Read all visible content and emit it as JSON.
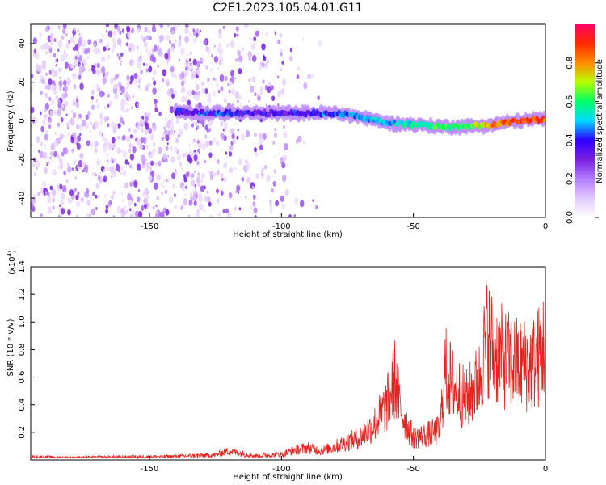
{
  "title": "C2E1.2023.105.04.01.G11",
  "chart_data": [
    {
      "type": "heatmap",
      "xlabel": "Height of straight line (km)",
      "ylabel": "Frequency (Hz)",
      "xlim": [
        -195,
        0
      ],
      "ylim": [
        -50,
        50
      ],
      "x_ticks": [
        -150,
        -100,
        -50,
        0
      ],
      "y_ticks": [
        -40,
        -20,
        0,
        20,
        40
      ],
      "colorbar": {
        "label": "Normalized spectral amplitude",
        "range": [
          0.0,
          1.0
        ],
        "ticks": [
          "0.0",
          "0.2",
          "0.4",
          "0.6",
          "0.8"
        ],
        "colormap": [
          "#ffffff",
          "#e2c8ff",
          "#b47cff",
          "#7a1fe0",
          "#2d00ff",
          "#00d9ff",
          "#00ff66",
          "#b4ff00",
          "#ff8c00",
          "#ff2a00",
          "#ff0066"
        ]
      },
      "ridge": [
        {
          "x": -140,
          "y": 5,
          "a": 0.35
        },
        {
          "x": -130,
          "y": 4,
          "a": 0.4
        },
        {
          "x": -120,
          "y": 4,
          "a": 0.4
        },
        {
          "x": -110,
          "y": 4,
          "a": 0.35
        },
        {
          "x": -100,
          "y": 4,
          "a": 0.35
        },
        {
          "x": -90,
          "y": 4,
          "a": 0.4
        },
        {
          "x": -80,
          "y": 4,
          "a": 0.45
        },
        {
          "x": -70,
          "y": 2,
          "a": 0.45
        },
        {
          "x": -60,
          "y": -1,
          "a": 0.5
        },
        {
          "x": -50,
          "y": -2,
          "a": 0.55
        },
        {
          "x": -40,
          "y": -3,
          "a": 0.6
        },
        {
          "x": -30,
          "y": -3,
          "a": 0.6
        },
        {
          "x": -20,
          "y": -2,
          "a": 0.8
        },
        {
          "x": -10,
          "y": 0,
          "a": 0.9
        },
        {
          "x": 0,
          "y": 1,
          "a": 0.85
        }
      ],
      "noise_regions": [
        {
          "x0": -195,
          "x1": -130,
          "density": 1.0
        },
        {
          "x0": -130,
          "x1": -97,
          "density": 0.55
        },
        {
          "x0": -97,
          "x1": -85,
          "density": 0.12
        }
      ]
    },
    {
      "type": "line",
      "xlabel": "Height of straight line (km)",
      "ylabel": "SNR (10 * v/v)",
      "y_multiplier": "(x10",
      "y_multiplier_exp": "4",
      "y_multiplier_close": ")",
      "xlim": [
        -195,
        0
      ],
      "ylim": [
        0,
        14000
      ],
      "x_ticks": [
        -150,
        -100,
        -50,
        0
      ],
      "y_ticks": [
        "0.2",
        "0.4",
        "0.6",
        "0.8",
        "1.0",
        "1.2",
        "1.4"
      ],
      "color": "#e8231f",
      "series": [
        {
          "x": [
            -195,
            -180,
            -160,
            -140,
            -125,
            -120,
            -110,
            -100,
            -95,
            -90,
            -85,
            -80,
            -75,
            -70,
            -65,
            -60,
            -57,
            -55,
            -50,
            -45,
            -40,
            -38,
            -35,
            -30,
            -25,
            -22,
            -20,
            -15,
            -10,
            -5,
            -2,
            0
          ],
          "y": [
            300,
            250,
            300,
            350,
            500,
            900,
            400,
            550,
            1000,
            1200,
            900,
            1300,
            1800,
            2300,
            3500,
            5500,
            8200,
            5000,
            2200,
            2500,
            3000,
            9000,
            7500,
            6000,
            8000,
            13000,
            11000,
            10000,
            9500,
            9500,
            10500,
            12000
          ]
        }
      ]
    }
  ]
}
